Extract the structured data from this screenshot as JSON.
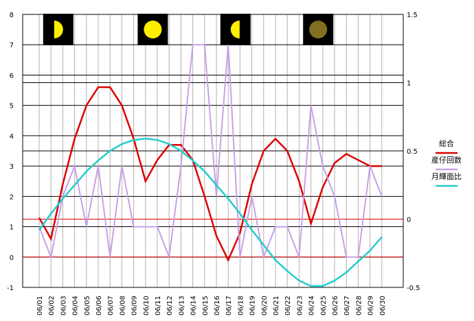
{
  "chart_data": {
    "type": "line",
    "categories": [
      "06/01",
      "06/02",
      "06/03",
      "06/04",
      "06/05",
      "06/06",
      "06/07",
      "06/08",
      "06/09",
      "06/10",
      "06/11",
      "06/12",
      "06/13",
      "06/14",
      "06/15",
      "06/16",
      "06/17",
      "06/18",
      "06/19",
      "06/20",
      "06/21",
      "06/22",
      "06/23",
      "06/24",
      "06/25",
      "06/26",
      "06/27",
      "06/28",
      "06/29",
      "06/30"
    ],
    "left_axis": {
      "ylim": [
        -1,
        8
      ],
      "ticks": [
        "-1",
        "0",
        "1",
        "2",
        "3",
        "4",
        "5",
        "6",
        "7",
        "8"
      ]
    },
    "right_axis": {
      "ylim": [
        -0.5,
        1.5
      ],
      "ticks": [
        "-0.5",
        "0",
        "0.5",
        "1",
        "1.5"
      ]
    },
    "grid": true,
    "legend_position": "right",
    "series": [
      {
        "name": "総合",
        "axis": "left",
        "color": "#dd0000",
        "values": [
          1.3,
          0.6,
          2.4,
          3.9,
          5.0,
          5.6,
          5.6,
          5.0,
          3.9,
          2.5,
          3.2,
          3.7,
          3.7,
          3.2,
          2.0,
          0.7,
          -0.1,
          0.8,
          2.4,
          3.5,
          3.9,
          3.5,
          2.5,
          1.1,
          2.3,
          3.1,
          3.4,
          3.2,
          3.0,
          3.0
        ]
      },
      {
        "name": "産仔回数",
        "axis": "left",
        "color": "#c8a0e8",
        "values": [
          1,
          0,
          2,
          3,
          1,
          3,
          0,
          3,
          1,
          1,
          1,
          0,
          3,
          7,
          7,
          2,
          7,
          0,
          2,
          0,
          1,
          1,
          0,
          5,
          3,
          2,
          0,
          0,
          3,
          2
        ]
      },
      {
        "name": "月輝面比",
        "axis": "right",
        "color": "#22cccc",
        "values": [
          -0.08,
          0.04,
          0.15,
          0.25,
          0.35,
          0.43,
          0.5,
          0.55,
          0.58,
          0.59,
          0.58,
          0.55,
          0.5,
          0.43,
          0.35,
          0.25,
          0.15,
          0.04,
          -0.08,
          -0.19,
          -0.3,
          -0.38,
          -0.45,
          -0.49,
          -0.49,
          -0.45,
          -0.39,
          -0.31,
          -0.23,
          -0.13
        ]
      }
    ],
    "reference_lines_left": [
      0,
      1.25,
      5.75
    ],
    "moon_phases": [
      {
        "category": "06/02",
        "phase": "first-quarter",
        "color": "#ffee00"
      },
      {
        "category": "06/10",
        "phase": "full-moon",
        "color": "#ffee00"
      },
      {
        "category": "06/17",
        "phase": "last-quarter",
        "color": "#ffee00"
      },
      {
        "category": "06/24",
        "phase": "new-moon",
        "color": "#807020"
      }
    ],
    "colors": {
      "background": "#ffffff",
      "frame": "#000000",
      "h_grid": "#000000",
      "v_grid": "#b0b0b0",
      "ref_line": "#dd0000",
      "moon_box": "#000000"
    }
  }
}
